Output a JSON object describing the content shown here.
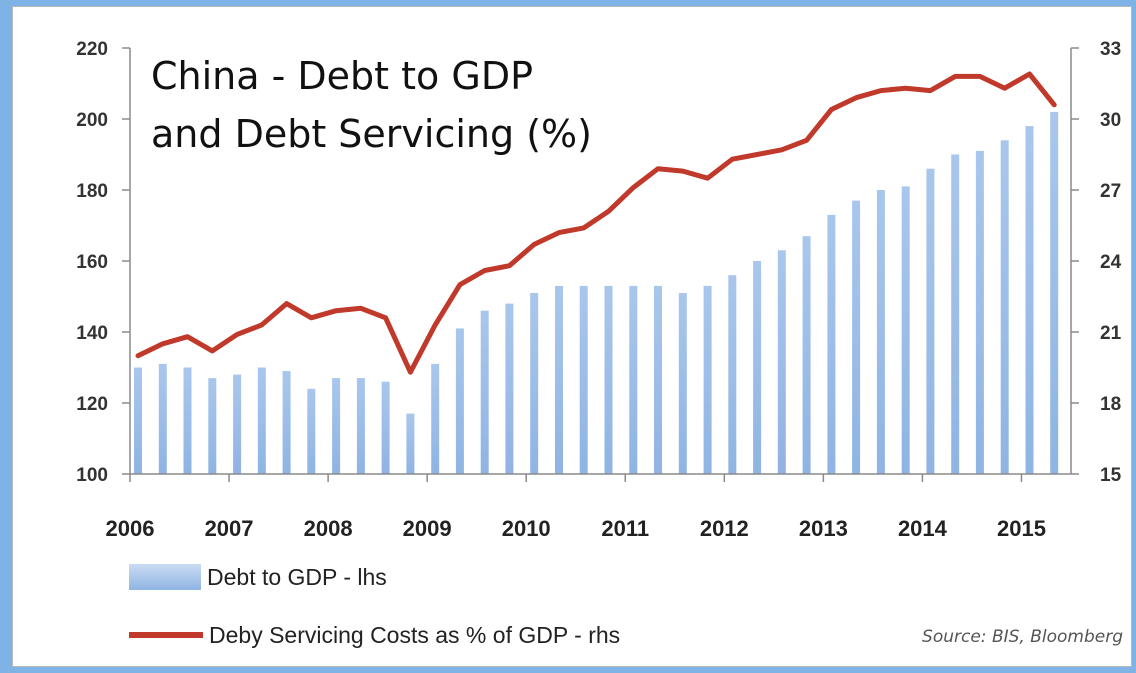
{
  "title_lines": [
    "China - Debt to GDP",
    "and Debt Servicing (%)"
  ],
  "source": "Source: BIS, Bloomberg",
  "legend": {
    "bars": "Debt to GDP - lhs",
    "line": "Deby Servicing Costs as % of GDP - rhs"
  },
  "colors": {
    "bar": "#8fb4e3",
    "line": "#c0392b",
    "background": "#7fb3e6"
  },
  "chart_data": {
    "type": "bar",
    "title": "China - Debt to GDP and Debt Servicing (%)",
    "x_labels": [
      "2006",
      "2007",
      "2008",
      "2009",
      "2010",
      "2011",
      "2012",
      "2013",
      "2014",
      "2015"
    ],
    "x_start": 2006.0,
    "x_end": 2015.5,
    "x": [
      2006.0,
      2006.25,
      2006.5,
      2006.75,
      2007.0,
      2007.25,
      2007.5,
      2007.75,
      2008.0,
      2008.25,
      2008.5,
      2008.75,
      2009.0,
      2009.25,
      2009.5,
      2009.75,
      2010.0,
      2010.25,
      2010.5,
      2010.75,
      2011.0,
      2011.25,
      2011.5,
      2011.75,
      2012.0,
      2012.25,
      2012.5,
      2012.75,
      2013.0,
      2013.25,
      2013.5,
      2013.75,
      2014.0,
      2014.25,
      2014.5,
      2014.75,
      2015.0,
      2015.25
    ],
    "y_left": {
      "min": 100,
      "max": 220,
      "ticks": [
        100,
        120,
        140,
        160,
        180,
        200,
        220
      ]
    },
    "y_right": {
      "min": 15,
      "max": 33,
      "ticks": [
        15,
        18,
        21,
        24,
        27,
        30,
        33
      ]
    },
    "grid": false,
    "legend_position": "bottom-left",
    "series": [
      {
        "name": "Debt to GDP - lhs",
        "type": "bar",
        "axis": "left",
        "values": [
          130,
          131,
          130,
          127,
          128,
          130,
          129,
          124,
          127,
          127,
          126,
          117,
          131,
          141,
          146,
          148,
          151,
          153,
          153,
          153,
          153,
          153,
          151,
          153,
          156,
          160,
          163,
          167,
          173,
          177,
          180,
          181,
          186,
          190,
          191,
          194,
          198,
          202
        ]
      },
      {
        "name": "Deby Servicing Costs as % of GDP - rhs",
        "type": "line",
        "axis": "right",
        "values": [
          20.0,
          20.5,
          20.8,
          20.2,
          20.9,
          21.3,
          22.2,
          21.6,
          21.9,
          22.0,
          21.6,
          19.3,
          21.3,
          23.0,
          23.6,
          23.8,
          24.7,
          25.2,
          25.4,
          26.1,
          27.1,
          27.9,
          27.8,
          27.5,
          28.3,
          28.5,
          28.7,
          29.1,
          30.4,
          30.9,
          31.2,
          31.3,
          31.2,
          31.8,
          31.8,
          31.3,
          31.9,
          30.6
        ]
      }
    ]
  }
}
